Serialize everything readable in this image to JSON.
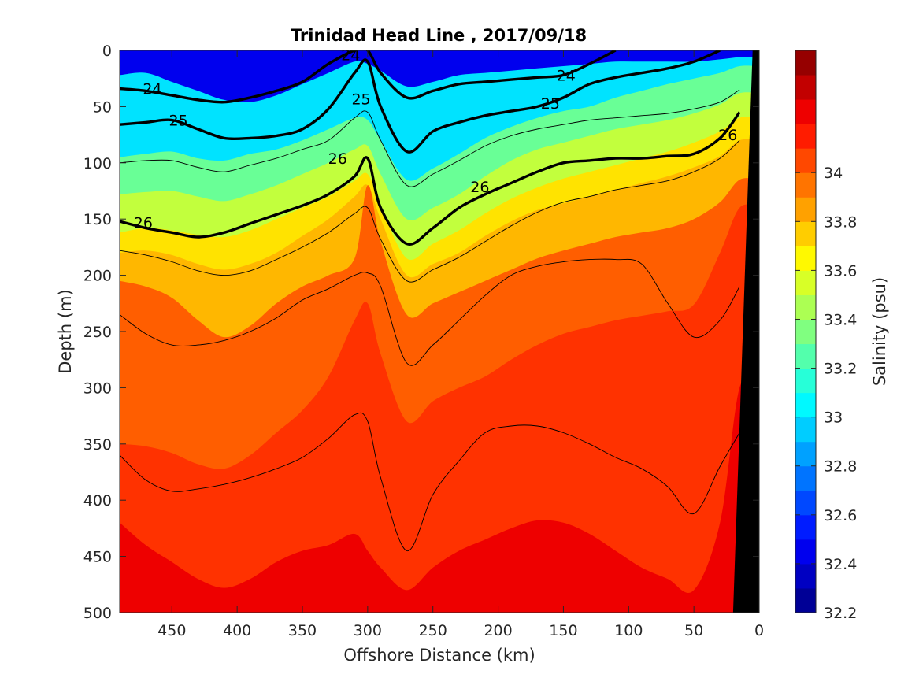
{
  "chart_data": {
    "type": "heatmap",
    "subtype": "filled-contour-section",
    "title": "Trinidad Head Line , 2017/09/18",
    "xlabel": "Offshore Distance (km)",
    "ylabel": "Depth (m)",
    "colorbar_label": "Salinity (psu)",
    "xlim": [
      490,
      0
    ],
    "x_reversed": true,
    "ylim": [
      0,
      500
    ],
    "y_reversed": true,
    "x_ticks": [
      450,
      400,
      350,
      300,
      250,
      200,
      150,
      100,
      50,
      0
    ],
    "y_ticks": [
      0,
      50,
      100,
      150,
      200,
      250,
      300,
      350,
      400,
      450,
      500
    ],
    "colorbar_range": [
      32.2,
      34.5
    ],
    "colorbar_step": 0.1,
    "colorbar_ticks": [
      32.2,
      32.4,
      32.6,
      32.8,
      33,
      33.2,
      33.4,
      33.6,
      33.8,
      34
    ],
    "colormap": "jet",
    "bottom_mask_color": "#000000",
    "profile_x": [
      490,
      470,
      450,
      430,
      410,
      390,
      370,
      350,
      330,
      310,
      300,
      290,
      270,
      250,
      230,
      210,
      190,
      170,
      150,
      130,
      110,
      90,
      70,
      50,
      30,
      15
    ],
    "salinity_levels": [
      {
        "value": 33.0,
        "depths": [
          22,
          20,
          28,
          36,
          44,
          46,
          40,
          30,
          20,
          10,
          12,
          18,
          32,
          28,
          22,
          20,
          18,
          16,
          14,
          12,
          10,
          10,
          10,
          10,
          8,
          6
        ]
      },
      {
        "value": 33.3,
        "depths": [
          95,
          92,
          90,
          96,
          98,
          92,
          88,
          80,
          70,
          60,
          62,
          80,
          115,
          105,
          92,
          78,
          68,
          60,
          54,
          50,
          42,
          36,
          30,
          25,
          20,
          14
        ]
      },
      {
        "value": 33.5,
        "depths": [
          128,
          126,
          125,
          130,
          134,
          128,
          120,
          110,
          100,
          88,
          85,
          110,
          150,
          140,
          128,
          112,
          98,
          88,
          82,
          76,
          70,
          66,
          62,
          56,
          48,
          38
        ]
      },
      {
        "value": 33.7,
        "depths": [
          162,
          158,
          160,
          164,
          166,
          160,
          150,
          140,
          130,
          116,
          110,
          138,
          185,
          172,
          160,
          145,
          132,
          122,
          114,
          108,
          102,
          96,
          90,
          82,
          72,
          60
        ]
      },
      {
        "value": 33.8,
        "depths": [
          180,
          178,
          182,
          190,
          195,
          190,
          180,
          165,
          150,
          130,
          120,
          150,
          200,
          190,
          180,
          165,
          152,
          142,
          136,
          130,
          124,
          118,
          112,
          104,
          94,
          80
        ]
      },
      {
        "value": 34.0,
        "depths": [
          205,
          210,
          220,
          240,
          255,
          245,
          225,
          210,
          200,
          185,
          120,
          170,
          235,
          225,
          215,
          205,
          195,
          185,
          178,
          172,
          166,
          162,
          158,
          150,
          135,
          115
        ]
      },
      {
        "value": 34.1,
        "depths": [
          350,
          352,
          358,
          368,
          372,
          360,
          340,
          320,
          290,
          240,
          225,
          270,
          330,
          312,
          300,
          290,
          275,
          262,
          252,
          246,
          240,
          236,
          232,
          226,
          180,
          140
        ]
      },
      {
        "value": 34.25,
        "depths": [
          420,
          440,
          455,
          470,
          478,
          470,
          455,
          445,
          440,
          430,
          445,
          460,
          480,
          460,
          445,
          435,
          425,
          418,
          420,
          430,
          445,
          460,
          470,
          480,
          420,
          300
        ]
      }
    ],
    "density_contours": [
      {
        "label": "24",
        "bold": true,
        "depths": [
          34,
          36,
          40,
          44,
          46,
          42,
          36,
          28,
          12,
          0,
          0,
          20,
          42,
          36,
          30,
          28,
          26,
          24,
          22,
          12,
          0,
          null,
          null,
          null,
          null,
          null
        ]
      },
      {
        "label": "25",
        "bold": true,
        "depths": [
          66,
          64,
          62,
          70,
          78,
          78,
          76,
          70,
          52,
          20,
          10,
          50,
          90,
          72,
          64,
          58,
          54,
          50,
          42,
          30,
          24,
          20,
          16,
          10,
          0,
          null
        ]
      },
      {
        "label": "26",
        "bold": true,
        "depths": [
          152,
          158,
          162,
          166,
          162,
          154,
          146,
          138,
          128,
          112,
          96,
          140,
          172,
          158,
          140,
          128,
          118,
          108,
          100,
          98,
          96,
          96,
          94,
          92,
          78,
          55
        ]
      },
      {
        "label": "",
        "bold": false,
        "depths": [
          100,
          98,
          98,
          104,
          108,
          102,
          96,
          88,
          80,
          60,
          55,
          80,
          120,
          110,
          98,
          85,
          76,
          70,
          66,
          62,
          60,
          58,
          56,
          52,
          46,
          35
        ]
      },
      {
        "label": "",
        "bold": false,
        "depths": [
          178,
          182,
          188,
          196,
          200,
          196,
          186,
          175,
          162,
          145,
          140,
          168,
          205,
          195,
          184,
          170,
          156,
          144,
          135,
          130,
          124,
          120,
          116,
          108,
          96,
          80
        ]
      },
      {
        "label": "",
        "bold": false,
        "depths": [
          235,
          252,
          262,
          262,
          258,
          250,
          238,
          222,
          212,
          200,
          198,
          210,
          278,
          262,
          240,
          218,
          200,
          192,
          188,
          186,
          186,
          190,
          225,
          255,
          240,
          210
        ]
      },
      {
        "label": "",
        "bold": false,
        "depths": [
          360,
          382,
          392,
          390,
          386,
          380,
          372,
          362,
          345,
          324,
          330,
          380,
          445,
          395,
          365,
          340,
          334,
          334,
          340,
          350,
          362,
          372,
          388,
          412,
          370,
          340
        ]
      }
    ],
    "density_label_positions": [
      {
        "label": "24",
        "x": 465,
        "y": 34
      },
      {
        "label": "24",
        "x": 313,
        "y": 4
      },
      {
        "label": "24",
        "x": 148,
        "y": 22
      },
      {
        "label": "25",
        "x": 445,
        "y": 62
      },
      {
        "label": "25",
        "x": 305,
        "y": 43
      },
      {
        "label": "25",
        "x": 160,
        "y": 47
      },
      {
        "label": "26",
        "x": 323,
        "y": 96
      },
      {
        "label": "26",
        "x": 214,
        "y": 121
      },
      {
        "label": "26",
        "x": 24,
        "y": 75
      },
      {
        "label": "26",
        "x": 472,
        "y": 153
      }
    ],
    "seafloor": [
      [
        20,
        500
      ],
      [
        5,
        0
      ],
      [
        0,
        0
      ],
      [
        0,
        500
      ]
    ]
  }
}
